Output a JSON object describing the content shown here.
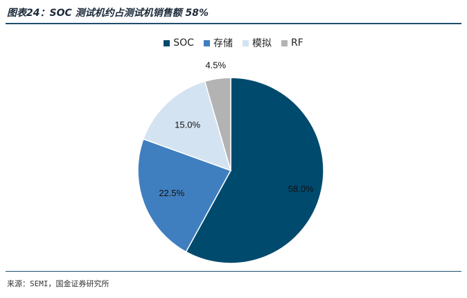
{
  "header": {
    "title": "图表24：SOC 测试机约占测试机销售额 58%"
  },
  "footer": {
    "source": "来源：SEMI，国金证券研究所"
  },
  "chart_data": {
    "type": "pie",
    "title": "图表24：SOC 测试机约占测试机销售额 58%",
    "categories": [
      "SOC",
      "存储",
      "模拟",
      "RF"
    ],
    "values": [
      58.0,
      22.5,
      15.0,
      4.5
    ],
    "value_labels": [
      "58.0%",
      "22.5%",
      "15.0%",
      "4.5%"
    ],
    "colors": [
      "#004a6e",
      "#3f7fbf",
      "#d3e3f2",
      "#b3b3b3"
    ],
    "legend": "top-center",
    "start": "12 o'clock, clockwise"
  }
}
